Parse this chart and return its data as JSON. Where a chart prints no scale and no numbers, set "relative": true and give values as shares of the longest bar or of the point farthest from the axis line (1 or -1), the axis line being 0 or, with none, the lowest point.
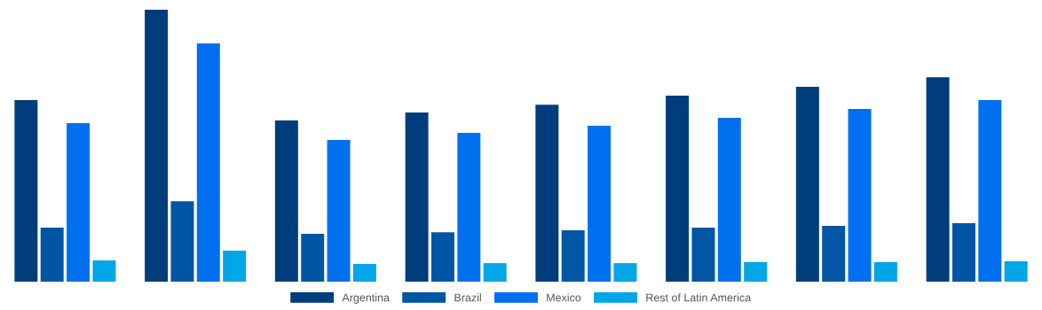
{
  "chart_data": {
    "type": "bar",
    "relative": true,
    "categories": [
      null,
      null,
      null,
      null,
      null,
      null,
      null,
      null
    ],
    "series": [
      {
        "name": "Argentina",
        "color": "#003d7c",
        "values": [
          0.668,
          1,
          0.593,
          0.622,
          0.651,
          0.684,
          0.717,
          0.752
        ]
      },
      {
        "name": "Brazil",
        "color": "#0055a5",
        "values": [
          0.199,
          0.296,
          0.176,
          0.182,
          0.189,
          0.199,
          0.205,
          0.215
        ]
      },
      {
        "name": "Mexico",
        "color": "#0070f0",
        "values": [
          0.583,
          0.876,
          0.521,
          0.547,
          0.573,
          0.603,
          0.635,
          0.668
        ]
      },
      {
        "name": "Rest of Latin America",
        "color": "#00a6e6",
        "values": [
          0.078,
          0.114,
          0.065,
          0.068,
          0.068,
          0.072,
          0.072,
          0.075
        ]
      }
    ],
    "legend": "bottom",
    "grid": false
  }
}
